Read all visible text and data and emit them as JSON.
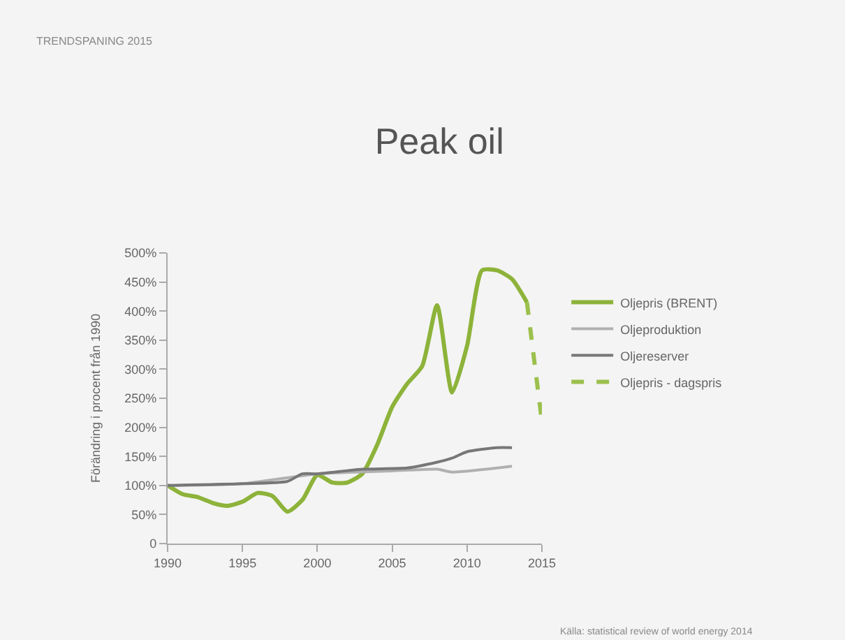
{
  "chart_data": {
    "type": "line",
    "title": "Peak oil",
    "subtitle": "TRENDSPANING 2015",
    "ylabel": "Förändring i procent från 1990",
    "series": [
      {
        "name": "Oljepris (BRENT)",
        "color": "#8db33a",
        "x": [
          1990,
          1991,
          1992,
          1993,
          1994,
          1995,
          1996,
          1997,
          1998,
          1999,
          2000,
          2001,
          2002,
          2003,
          2004,
          2005,
          2006,
          2007,
          2008,
          2009,
          2010,
          2011,
          2012,
          2013,
          2014
        ],
        "values": [
          100,
          85,
          80,
          70,
          65,
          72,
          87,
          82,
          55,
          75,
          118,
          105,
          105,
          120,
          170,
          235,
          275,
          305,
          410,
          260,
          340,
          470,
          470,
          455,
          415
        ]
      },
      {
        "name": "Oljeproduktion",
        "color": "#b0b0b0",
        "x": [
          1990,
          1995,
          2000,
          2005,
          2008,
          2009,
          2013
        ],
        "values": [
          100,
          103,
          120,
          125,
          128,
          123,
          133
        ]
      },
      {
        "name": "Oljereserver",
        "color": "#777777",
        "x": [
          1990,
          1995,
          1998,
          1999,
          2000,
          2003,
          2006,
          2008,
          2009,
          2010,
          2012,
          2013
        ],
        "values": [
          100,
          103,
          107,
          120,
          120,
          128,
          130,
          140,
          147,
          158,
          165,
          165
        ]
      },
      {
        "name": "Oljepris - dagspris",
        "color": "#9bc04c",
        "line_style": "dashed",
        "x": [
          2014,
          2015
        ],
        "values": [
          415,
          210
        ]
      }
    ],
    "xlim": [
      1990,
      2015
    ],
    "xticks": [
      1990,
      1995,
      2000,
      2005,
      2010,
      2015
    ],
    "ylim": [
      0,
      500
    ],
    "yticks": [
      {
        "value": 0,
        "label": "0"
      },
      {
        "value": 50,
        "label": "50%"
      },
      {
        "value": 100,
        "label": "100%"
      },
      {
        "value": 150,
        "label": "150%"
      },
      {
        "value": 200,
        "label": "200%"
      },
      {
        "value": 250,
        "label": "250%"
      },
      {
        "value": 300,
        "label": "300%"
      },
      {
        "value": 350,
        "label": "350%"
      },
      {
        "value": 400,
        "label": "400%"
      },
      {
        "value": 450,
        "label": "450%"
      },
      {
        "value": 500,
        "label": "500%"
      }
    ],
    "grid": false,
    "legend": "right",
    "marker": "none",
    "line_style": "solid",
    "annotations": [
      "Källa: statistical review of world energy 2014"
    ]
  }
}
